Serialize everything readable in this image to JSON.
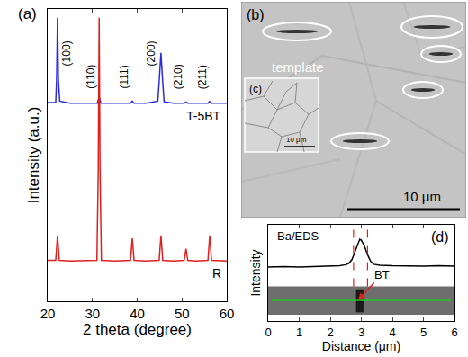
{
  "chart_data": [
    {
      "label": "(a)",
      "type": "line",
      "x_label": "2 theta (degree)",
      "y_label": "Intensity (a.u.)",
      "xlim": [
        20,
        60
      ],
      "xticks": [
        20,
        30,
        40,
        50,
        60
      ],
      "ylim": [
        0,
        100
      ],
      "tick_labels": "x",
      "series": [
        {
          "name": "T-5BT",
          "color": "#2b2bdc",
          "x": [
            20,
            21.8,
            22.0,
            22.2,
            22.4,
            22.7,
            25,
            31.1,
            31.5,
            31.9,
            35,
            38.5,
            38.9,
            39.3,
            42,
            44.6,
            44.9,
            45.3,
            45.7,
            46.0,
            48,
            50.5,
            50.9,
            51.3,
            53,
            55.8,
            56.2,
            56.6,
            60
          ],
          "values": [
            68,
            68,
            76,
            97,
            76,
            68.5,
            67.8,
            67.8,
            70,
            67.8,
            67.8,
            67.8,
            68.5,
            67.8,
            67.8,
            68.5,
            75,
            85,
            75,
            68.3,
            67.8,
            67.8,
            68.2,
            67.8,
            67.8,
            67.8,
            68.4,
            67.8,
            67.8
          ]
        },
        {
          "name": "R",
          "color": "#e0201f",
          "x": [
            20,
            21.8,
            22.2,
            22.6,
            25,
            31.0,
            31.3,
            31.5,
            31.7,
            32.0,
            35,
            38.5,
            38.9,
            39.3,
            42,
            44.9,
            45.3,
            45.7,
            48,
            50.5,
            50.9,
            51.3,
            53,
            55.8,
            56.2,
            56.6,
            60
          ],
          "values": [
            14,
            14,
            22.5,
            14,
            13.8,
            14,
            45,
            97,
            45,
            14,
            13.8,
            14,
            21.5,
            14,
            13.8,
            14,
            22.5,
            14,
            13.8,
            14,
            18,
            14,
            13.8,
            14,
            22.5,
            14,
            13.8
          ]
        }
      ],
      "annotations": [
        {
          "text": "(100)",
          "x": 24.3,
          "y": 80
        },
        {
          "text": "(110)",
          "x": 29.5,
          "y": 72
        },
        {
          "text": "(111)",
          "x": 37,
          "y": 72
        },
        {
          "text": "(200)",
          "x": 43.2,
          "y": 80
        },
        {
          "text": "(210)",
          "x": 49.2,
          "y": 72
        },
        {
          "text": "(211)",
          "x": 54.5,
          "y": 72
        }
      ]
    },
    {
      "label": "(d)",
      "type": "line",
      "x_label": "Distance (μm)",
      "y_label": "Intensity",
      "xlim": [
        0,
        6
      ],
      "xticks": [
        0,
        1,
        2,
        3,
        4,
        5,
        6
      ],
      "ylim": [
        0,
        100
      ],
      "tick_labels": "x",
      "series": [
        {
          "name": "Ba/EDS",
          "color": "#000000",
          "x": [
            0,
            0.5,
            1,
            1.5,
            2,
            2.3,
            2.5,
            2.6,
            2.7,
            2.8,
            2.9,
            2.95,
            3.0,
            3.1,
            3.2,
            3.3,
            3.4,
            3.6,
            4,
            4.5,
            5,
            5.5,
            6
          ],
          "values": [
            56,
            56.5,
            56,
            56.5,
            57,
            57.5,
            58.5,
            60,
            64,
            72,
            81,
            85,
            84,
            78,
            69,
            62,
            59,
            58,
            57.5,
            57,
            57,
            57.5,
            57
          ]
        }
      ],
      "vlines": {
        "values": [
          2.75,
          3.2
        ],
        "color": "#e0201f",
        "line_style": "dash"
      },
      "annotations": [
        {
          "text": "BT",
          "x": 2.9,
          "y": 22,
          "arrow": true,
          "color": "#e0201f"
        }
      ]
    }
  ],
  "micrographs": [
    {
      "label": "(b)",
      "text": "template",
      "scale_bar": "10 μm"
    },
    {
      "label": "(c)",
      "scale_bar": "10 μm"
    }
  ]
}
